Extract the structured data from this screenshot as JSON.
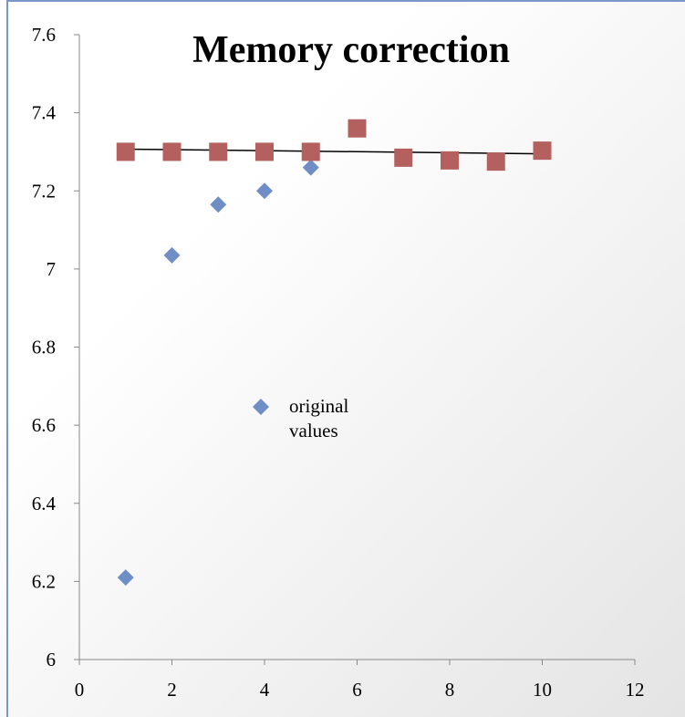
{
  "chart_data": {
    "type": "scatter",
    "title": "Memory correction",
    "series": [
      {
        "name": "original values",
        "color": "#6f8ec6",
        "marker": "diamond",
        "x": [
          1,
          2,
          3,
          4,
          5
        ],
        "values": [
          6.21,
          7.035,
          7.165,
          7.2,
          7.26
        ]
      },
      {
        "color": "#b3605e",
        "marker": "square",
        "x": [
          1,
          2,
          3,
          4,
          5,
          6,
          7,
          8,
          9,
          10
        ],
        "values": [
          7.3,
          7.3,
          7.3,
          7.3,
          7.3,
          7.36,
          7.285,
          7.278,
          7.275,
          7.303
        ]
      }
    ],
    "trendline": {
      "color": "#000000",
      "x": [
        1,
        10
      ],
      "values": [
        7.307,
        7.295
      ]
    },
    "xlim": [
      0,
      12
    ],
    "xticks": [
      0,
      2,
      4,
      6,
      8,
      10,
      12
    ],
    "ylim": [
      6,
      7.6
    ],
    "yticks": [
      6,
      6.2,
      6.4,
      6.6,
      6.8,
      7,
      7.2,
      7.4,
      7.6
    ],
    "grid": false
  }
}
